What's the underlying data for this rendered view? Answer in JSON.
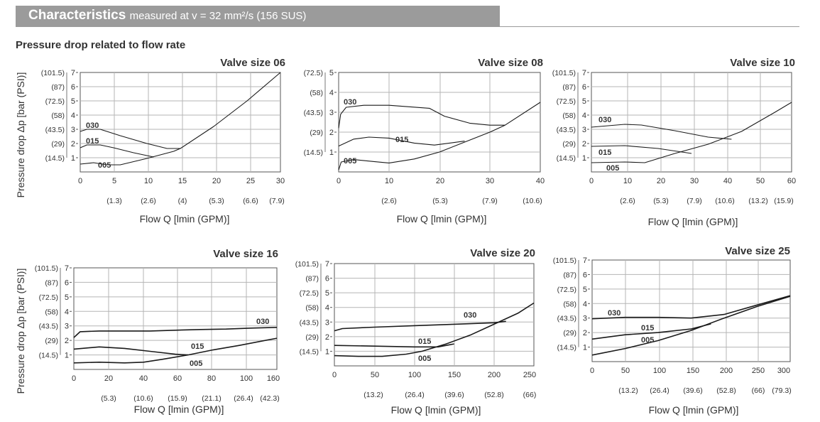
{
  "header": {
    "title": "Characteristics",
    "subtitle": "measured at v = 32 mm²/s (156 SUS)"
  },
  "section_title": "Pressure drop related to flow rate",
  "colors": {
    "header_band": "#9b9b9b",
    "grid": "#b5b5b5",
    "curve": "#1a1a1a",
    "text": "#333333"
  },
  "chart_data": [
    {
      "type": "line",
      "title": "Valve size 06",
      "ylabel": "Pressure drop Δp [bar (PSI)]",
      "xlabel": "Flow Q [lmin (GPM)]",
      "xlim": [
        0,
        30
      ],
      "ylim": [
        0,
        7
      ],
      "x_ticks": [
        "0",
        "5",
        "10",
        "15",
        "20",
        "25",
        "30"
      ],
      "x_ticks_secondary": [
        "(1.3)",
        "(2.6)",
        "(4)",
        "(5.3)",
        "(6.6)",
        "(7.9)"
      ],
      "y_ticks": [
        "1",
        "2",
        "3",
        "4",
        "5",
        "6",
        "7"
      ],
      "y_ticks_secondary": [
        "(14.5)",
        "(29)",
        "(43.5)",
        "(58)",
        "(72.5)",
        "(87)",
        "(101.5)"
      ],
      "series": [
        {
          "name": "030",
          "x": [
            0,
            1,
            3,
            6,
            10,
            13,
            15,
            20,
            25,
            30
          ],
          "y": [
            2.85,
            3,
            3,
            2.55,
            2.0,
            1.65,
            1.65,
            3.2,
            5.0,
            7.0
          ]
        },
        {
          "name": "015",
          "x": [
            0,
            1,
            3,
            5,
            8,
            11
          ],
          "y": [
            1.7,
            1.9,
            1.9,
            1.7,
            1.35,
            1.05
          ]
        },
        {
          "name": "005",
          "x": [
            0,
            2,
            4,
            6,
            10,
            14,
            15
          ],
          "y": [
            0.55,
            0.65,
            0.5,
            0.5,
            0.95,
            1.45,
            1.65
          ]
        }
      ]
    },
    {
      "type": "line",
      "title": "Valve size 08",
      "xlabel": "Flow Q [lmin (GPM)]",
      "xlim": [
        0,
        40
      ],
      "ylim": [
        0,
        5
      ],
      "x_ticks": [
        "0",
        "10",
        "20",
        "30",
        "40"
      ],
      "x_ticks_secondary": [
        "(2.6)",
        "(5.3)",
        "(7.9)",
        "(10.6)"
      ],
      "y_ticks": [
        "1",
        "2",
        "3",
        "4",
        "5"
      ],
      "y_ticks_secondary": [
        "(14.5)",
        "(29)",
        "(43.5)",
        "(58)",
        "(72.5)"
      ],
      "series": [
        {
          "name": "030",
          "x": [
            0,
            0.4,
            1.5,
            5,
            10,
            18,
            21,
            26,
            30,
            33,
            40
          ],
          "y": [
            2.2,
            2.9,
            3.25,
            3.35,
            3.35,
            3.2,
            2.8,
            2.45,
            2.35,
            2.35,
            3.5
          ]
        },
        {
          "name": "015",
          "x": [
            0,
            3,
            6,
            10,
            15,
            19,
            25
          ],
          "y": [
            1.3,
            1.65,
            1.75,
            1.7,
            1.45,
            1.35,
            1.55
          ]
        },
        {
          "name": "005",
          "x": [
            0,
            0.5,
            3,
            7,
            10,
            15,
            20,
            25,
            30,
            33
          ],
          "y": [
            0.1,
            0.5,
            0.62,
            0.52,
            0.45,
            0.65,
            1.0,
            1.5,
            2.0,
            2.35
          ]
        }
      ]
    },
    {
      "type": "line",
      "title": "Valve size 10",
      "xlim": [
        0,
        60
      ],
      "ylim": [
        0,
        7
      ],
      "x_ticks": [
        "0",
        "10",
        "20",
        "30",
        "40",
        "50",
        "60"
      ],
      "x_ticks_secondary": [
        "(2.6)",
        "(5.3)",
        "(7.9)",
        "(10.6)",
        "(13.2)",
        "(15.9)"
      ],
      "xlabel": "Flow Q [lmin (GPM)]",
      "y_ticks": [
        "1",
        "2",
        "3",
        "4",
        "5",
        "6",
        "7"
      ],
      "y_ticks_secondary": [
        "(14.5)",
        "(29)",
        "(43.5)",
        "(58)",
        "(72.5)",
        "(87)",
        "(101.5)"
      ],
      "series": [
        {
          "name": "030",
          "x": [
            0,
            10,
            15,
            25,
            35,
            42
          ],
          "y": [
            3.15,
            3.35,
            3.3,
            2.9,
            2.45,
            2.3
          ]
        },
        {
          "name": "015",
          "x": [
            0,
            10,
            20,
            30
          ],
          "y": [
            1.8,
            1.85,
            1.65,
            1.3
          ]
        },
        {
          "name": "005",
          "x": [
            0,
            10,
            16,
            25,
            35,
            45,
            55,
            60
          ],
          "y": [
            0.65,
            0.7,
            0.65,
            1.3,
            1.95,
            2.85,
            4.2,
            4.9
          ]
        }
      ]
    },
    {
      "type": "line",
      "title": "Valve size 16",
      "ylabel": "Pressure drop Δp [bar (PSI)]",
      "xlabel": "Flow Q [lmin (GPM)]",
      "xlim": [
        0,
        160
      ],
      "ylim": [
        0,
        7
      ],
      "x_ticks": [
        "0",
        "20",
        "40",
        "60",
        "80",
        "100",
        "160"
      ],
      "x_ticks_secondary": [
        "(5.3)",
        "(10.6)",
        "(15.9)",
        "(21.1)",
        "(26.4)",
        "(42.3)"
      ],
      "y_ticks": [
        "1",
        "2",
        "3",
        "4",
        "5",
        "6",
        "7"
      ],
      "y_ticks_secondary": [
        "(14.5)",
        "(29)",
        "(43.5)",
        "(58)",
        "(72.5)",
        "(87)",
        "(101.5)"
      ],
      "series": [
        {
          "name": "030",
          "x": [
            0,
            5,
            20,
            40,
            60,
            80,
            100,
            120,
            140,
            160
          ],
          "y": [
            2.2,
            2.6,
            2.65,
            2.65,
            2.65,
            2.7,
            2.75,
            2.78,
            2.85,
            2.9
          ]
        },
        {
          "name": "015",
          "x": [
            0,
            20,
            40,
            60,
            80,
            90
          ],
          "y": [
            1.4,
            1.55,
            1.45,
            1.25,
            1.05,
            1.0
          ]
        },
        {
          "name": "005",
          "x": [
            0,
            20,
            40,
            55,
            70,
            90,
            110,
            130,
            160
          ],
          "y": [
            0.45,
            0.5,
            0.45,
            0.5,
            0.7,
            1.0,
            1.35,
            1.65,
            2.15
          ]
        }
      ]
    },
    {
      "type": "line",
      "title": "Valve size 20",
      "xlabel": "Flow Q [lmin (GPM)]",
      "xlim": [
        0,
        250
      ],
      "ylim": [
        0,
        7
      ],
      "x_ticks": [
        "0",
        "50",
        "100",
        "150",
        "200",
        "250"
      ],
      "x_ticks_secondary": [
        "(13.2)",
        "(26.4)",
        "(39.6)",
        "(52.8)",
        "(66)"
      ],
      "y_ticks": [
        "1",
        "2",
        "3",
        "4",
        "5",
        "6",
        "7"
      ],
      "y_ticks_secondary": [
        "(14.5)",
        "(29)",
        "(43.5)",
        "(58)",
        "(72.5)",
        "(87)",
        "(101.5)"
      ],
      "series": [
        {
          "name": "030",
          "x": [
            0,
            10,
            50,
            100,
            150,
            200,
            215
          ],
          "y": [
            2.4,
            2.55,
            2.65,
            2.75,
            2.85,
            2.95,
            3.05
          ]
        },
        {
          "name": "015",
          "x": [
            0,
            50,
            100,
            130,
            150
          ],
          "y": [
            1.4,
            1.35,
            1.3,
            1.3,
            1.5
          ]
        },
        {
          "name": "005",
          "x": [
            0,
            30,
            60,
            90,
            110,
            140,
            170,
            200,
            230,
            250
          ],
          "y": [
            0.7,
            0.65,
            0.65,
            0.8,
            1.0,
            1.5,
            2.1,
            2.85,
            3.6,
            4.3
          ]
        }
      ]
    },
    {
      "type": "line",
      "title": "Valve size 25",
      "xlabel": "Flow Q [lmin (GPM)]",
      "xlim": [
        0,
        300
      ],
      "ylim": [
        0,
        7
      ],
      "x_ticks": [
        "0",
        "50",
        "100",
        "150",
        "200",
        "250",
        "300"
      ],
      "x_ticks_secondary": [
        "(13.2)",
        "(26.4)",
        "(39.6)",
        "(52.8)",
        "(66)",
        "(79.3)"
      ],
      "y_ticks": [
        "1",
        "2",
        "3",
        "4",
        "5",
        "6",
        "7"
      ],
      "y_ticks_secondary": [
        "(14.5)",
        "(29)",
        "(43.5)",
        "(58)",
        "(72.5)",
        "(87)",
        "(101.5)"
      ],
      "series": [
        {
          "name": "030",
          "x": [
            0,
            50,
            100,
            150,
            200,
            250,
            300
          ],
          "y": [
            2.95,
            3.05,
            3.05,
            3.0,
            3.25,
            3.9,
            4.55
          ]
        },
        {
          "name": "015",
          "x": [
            0,
            50,
            100,
            150,
            180
          ],
          "y": [
            1.55,
            1.85,
            2.0,
            2.25,
            2.6
          ]
        },
        {
          "name": "005",
          "x": [
            0,
            50,
            100,
            150,
            200,
            250,
            300
          ],
          "y": [
            0.45,
            0.9,
            1.45,
            2.15,
            3.0,
            3.8,
            4.5
          ]
        }
      ]
    }
  ]
}
